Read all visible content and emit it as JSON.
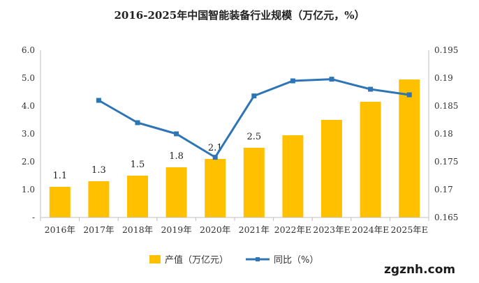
{
  "chart_data": {
    "type": "bar",
    "title": "2016-2025年中国智能装备行业规模（万亿元，%）",
    "categories": [
      "2016年",
      "2017年",
      "2018年",
      "2019年",
      "2020年",
      "2021年",
      "2022年E",
      "2023年E",
      "2024年E",
      "2025年E"
    ],
    "series": [
      {
        "name": "产值（万亿元）",
        "type": "bar",
        "axis": "left",
        "values": [
          1.1,
          1.3,
          1.5,
          1.8,
          2.1,
          2.5,
          2.95,
          3.5,
          4.15,
          4.95
        ],
        "data_labels": [
          "1.1",
          "1.3",
          "1.5",
          "1.8",
          "2.1",
          "2.5",
          "",
          "",
          "",
          ""
        ],
        "color": "#FFC000"
      },
      {
        "name": "同比（%）",
        "type": "line",
        "axis": "right",
        "values": [
          null,
          0.186,
          0.182,
          0.18,
          0.1758,
          0.1868,
          0.1895,
          0.1898,
          0.188,
          0.187
        ],
        "color": "#2E75B6"
      }
    ],
    "y_left": {
      "ylim": [
        0,
        6
      ],
      "tick_values": [
        0,
        1,
        2,
        3,
        4,
        5,
        6
      ],
      "tick_labels": [
        "-",
        "1.0",
        "2.0",
        "3.0",
        "4.0",
        "5.0",
        "6.0"
      ]
    },
    "y_right": {
      "ylim": [
        0.165,
        0.195
      ],
      "tick_values": [
        0.165,
        0.17,
        0.175,
        0.18,
        0.185,
        0.19,
        0.195
      ],
      "tick_labels": [
        "0.165",
        "0.17",
        "0.175",
        "0.18",
        "0.185",
        "0.19",
        "0.195"
      ]
    },
    "grid": false,
    "legend": "bottom"
  },
  "watermark": "zgznh.com"
}
